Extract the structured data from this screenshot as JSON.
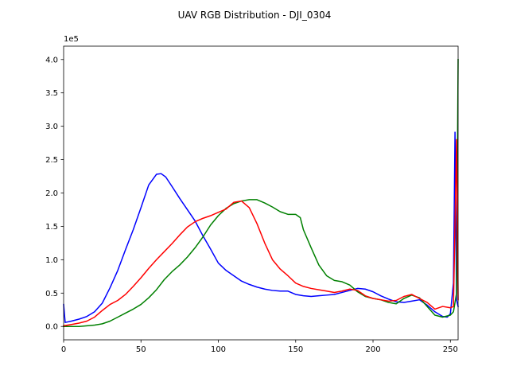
{
  "chart_data": {
    "type": "line",
    "title": "UAV RGB Distribution - DJI_0304",
    "xlabel": "",
    "ylabel": "",
    "y_offset_label": "1e5",
    "xlim": [
      0,
      255
    ],
    "ylim": [
      -0.2,
      4.2
    ],
    "y_scale_note": "values in units of 1e5",
    "x_ticks": [
      0,
      50,
      100,
      150,
      200,
      250
    ],
    "x_tick_labels": [
      "0",
      "50",
      "100",
      "150",
      "200",
      "250"
    ],
    "y_ticks": [
      0,
      0.5,
      1.0,
      1.5,
      2.0,
      2.5,
      3.0,
      3.5,
      4.0
    ],
    "y_tick_labels": [
      "0.0",
      "0.5",
      "1.0",
      "1.5",
      "2.0",
      "2.5",
      "3.0",
      "3.5",
      "4.0"
    ],
    "grid": false,
    "legend": "none",
    "series": [
      {
        "color": "#0000ff",
        "points": [
          [
            0,
            0.33
          ],
          [
            1,
            0.06
          ],
          [
            5,
            0.08
          ],
          [
            10,
            0.11
          ],
          [
            15,
            0.15
          ],
          [
            20,
            0.22
          ],
          [
            25,
            0.35
          ],
          [
            30,
            0.58
          ],
          [
            35,
            0.84
          ],
          [
            40,
            1.15
          ],
          [
            45,
            1.45
          ],
          [
            50,
            1.78
          ],
          [
            55,
            2.12
          ],
          [
            60,
            2.28
          ],
          [
            63,
            2.29
          ],
          [
            66,
            2.24
          ],
          [
            70,
            2.1
          ],
          [
            75,
            1.92
          ],
          [
            80,
            1.75
          ],
          [
            85,
            1.58
          ],
          [
            90,
            1.36
          ],
          [
            95,
            1.16
          ],
          [
            100,
            0.95
          ],
          [
            105,
            0.84
          ],
          [
            110,
            0.76
          ],
          [
            115,
            0.68
          ],
          [
            120,
            0.63
          ],
          [
            125,
            0.59
          ],
          [
            130,
            0.56
          ],
          [
            135,
            0.54
          ],
          [
            140,
            0.53
          ],
          [
            145,
            0.53
          ],
          [
            150,
            0.48
          ],
          [
            155,
            0.46
          ],
          [
            160,
            0.45
          ],
          [
            165,
            0.46
          ],
          [
            170,
            0.47
          ],
          [
            175,
            0.48
          ],
          [
            180,
            0.51
          ],
          [
            185,
            0.54
          ],
          [
            190,
            0.57
          ],
          [
            195,
            0.56
          ],
          [
            200,
            0.52
          ],
          [
            205,
            0.46
          ],
          [
            210,
            0.41
          ],
          [
            215,
            0.37
          ],
          [
            220,
            0.36
          ],
          [
            225,
            0.38
          ],
          [
            230,
            0.4
          ],
          [
            235,
            0.32
          ],
          [
            240,
            0.22
          ],
          [
            245,
            0.15
          ],
          [
            248,
            0.14
          ],
          [
            250,
            0.19
          ],
          [
            252,
            0.65
          ],
          [
            253,
            2.91
          ],
          [
            254,
            0.4
          ],
          [
            255,
            0.3
          ]
        ]
      },
      {
        "color": "#008000",
        "points": [
          [
            0,
            0.0
          ],
          [
            5,
            0.0
          ],
          [
            10,
            0.0
          ],
          [
            15,
            0.01
          ],
          [
            20,
            0.02
          ],
          [
            25,
            0.04
          ],
          [
            30,
            0.08
          ],
          [
            35,
            0.14
          ],
          [
            40,
            0.2
          ],
          [
            45,
            0.26
          ],
          [
            50,
            0.33
          ],
          [
            55,
            0.43
          ],
          [
            60,
            0.55
          ],
          [
            65,
            0.7
          ],
          [
            70,
            0.82
          ],
          [
            75,
            0.92
          ],
          [
            80,
            1.04
          ],
          [
            85,
            1.18
          ],
          [
            90,
            1.34
          ],
          [
            95,
            1.52
          ],
          [
            100,
            1.66
          ],
          [
            105,
            1.77
          ],
          [
            110,
            1.84
          ],
          [
            115,
            1.88
          ],
          [
            120,
            1.9
          ],
          [
            125,
            1.9
          ],
          [
            130,
            1.85
          ],
          [
            135,
            1.79
          ],
          [
            140,
            1.72
          ],
          [
            145,
            1.68
          ],
          [
            150,
            1.68
          ],
          [
            153,
            1.63
          ],
          [
            155,
            1.45
          ],
          [
            160,
            1.18
          ],
          [
            165,
            0.92
          ],
          [
            170,
            0.76
          ],
          [
            175,
            0.69
          ],
          [
            180,
            0.67
          ],
          [
            185,
            0.62
          ],
          [
            190,
            0.52
          ],
          [
            195,
            0.45
          ],
          [
            200,
            0.42
          ],
          [
            205,
            0.4
          ],
          [
            210,
            0.36
          ],
          [
            215,
            0.34
          ],
          [
            220,
            0.42
          ],
          [
            225,
            0.47
          ],
          [
            230,
            0.43
          ],
          [
            235,
            0.3
          ],
          [
            240,
            0.17
          ],
          [
            245,
            0.14
          ],
          [
            250,
            0.17
          ],
          [
            252,
            0.22
          ],
          [
            254,
            0.5
          ],
          [
            255,
            4.0
          ]
        ]
      },
      {
        "color": "#ff0000",
        "points": [
          [
            0,
            0.01
          ],
          [
            5,
            0.03
          ],
          [
            10,
            0.05
          ],
          [
            15,
            0.08
          ],
          [
            20,
            0.14
          ],
          [
            25,
            0.24
          ],
          [
            30,
            0.33
          ],
          [
            35,
            0.39
          ],
          [
            40,
            0.48
          ],
          [
            45,
            0.6
          ],
          [
            50,
            0.73
          ],
          [
            55,
            0.87
          ],
          [
            60,
            1.0
          ],
          [
            65,
            1.12
          ],
          [
            70,
            1.24
          ],
          [
            75,
            1.37
          ],
          [
            80,
            1.49
          ],
          [
            85,
            1.57
          ],
          [
            90,
            1.62
          ],
          [
            95,
            1.66
          ],
          [
            100,
            1.71
          ],
          [
            105,
            1.76
          ],
          [
            110,
            1.86
          ],
          [
            115,
            1.88
          ],
          [
            120,
            1.78
          ],
          [
            125,
            1.54
          ],
          [
            130,
            1.25
          ],
          [
            135,
            1.0
          ],
          [
            140,
            0.86
          ],
          [
            145,
            0.76
          ],
          [
            150,
            0.65
          ],
          [
            155,
            0.6
          ],
          [
            160,
            0.57
          ],
          [
            165,
            0.55
          ],
          [
            170,
            0.53
          ],
          [
            175,
            0.51
          ],
          [
            180,
            0.53
          ],
          [
            185,
            0.56
          ],
          [
            190,
            0.54
          ],
          [
            195,
            0.46
          ],
          [
            200,
            0.42
          ],
          [
            205,
            0.4
          ],
          [
            210,
            0.38
          ],
          [
            215,
            0.39
          ],
          [
            220,
            0.45
          ],
          [
            225,
            0.48
          ],
          [
            230,
            0.42
          ],
          [
            235,
            0.36
          ],
          [
            240,
            0.26
          ],
          [
            245,
            0.3
          ],
          [
            250,
            0.28
          ],
          [
            252,
            0.3
          ],
          [
            254,
            2.8
          ],
          [
            255,
            0.4
          ]
        ]
      }
    ]
  }
}
